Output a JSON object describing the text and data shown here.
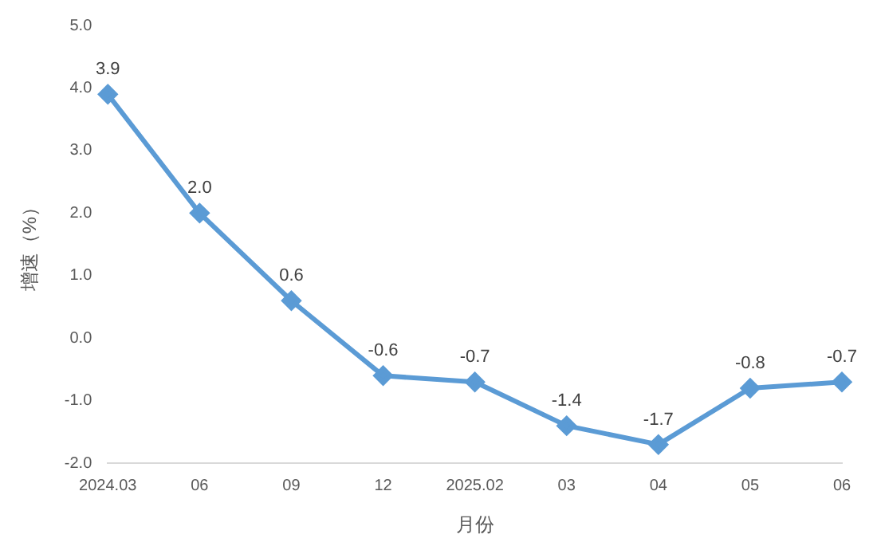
{
  "chart_data": {
    "type": "line",
    "xlabel": "月份",
    "ylabel": "增速（%）",
    "categories": [
      "2024.03",
      "06",
      "09",
      "12",
      "2025.02",
      "03",
      "04",
      "05",
      "06"
    ],
    "series": [
      {
        "color": "#5b9bd5",
        "values": [
          3.9,
          2.0,
          0.6,
          -0.6,
          -0.7,
          -1.4,
          -1.7,
          -0.8,
          -0.7
        ],
        "value_labels": [
          "3.9",
          "2.0",
          "0.6",
          "-0.6",
          "-0.7",
          "-1.4",
          "-1.7",
          "-0.8",
          "-0.7"
        ]
      }
    ],
    "ylim": [
      -2,
      5
    ],
    "yticks": [
      {
        "value": -2,
        "label": "-2.0"
      },
      {
        "value": -1,
        "label": "-1.0"
      },
      {
        "value": 0,
        "label": "0.0"
      },
      {
        "value": 1,
        "label": "1.0"
      },
      {
        "value": 2,
        "label": "2.0"
      },
      {
        "value": 3,
        "label": "3.0"
      },
      {
        "value": 4,
        "label": "4.0"
      },
      {
        "value": 5,
        "label": "5.0"
      }
    ],
    "grid": false,
    "legend": false,
    "marker": "diamond",
    "line_style": "solid"
  }
}
